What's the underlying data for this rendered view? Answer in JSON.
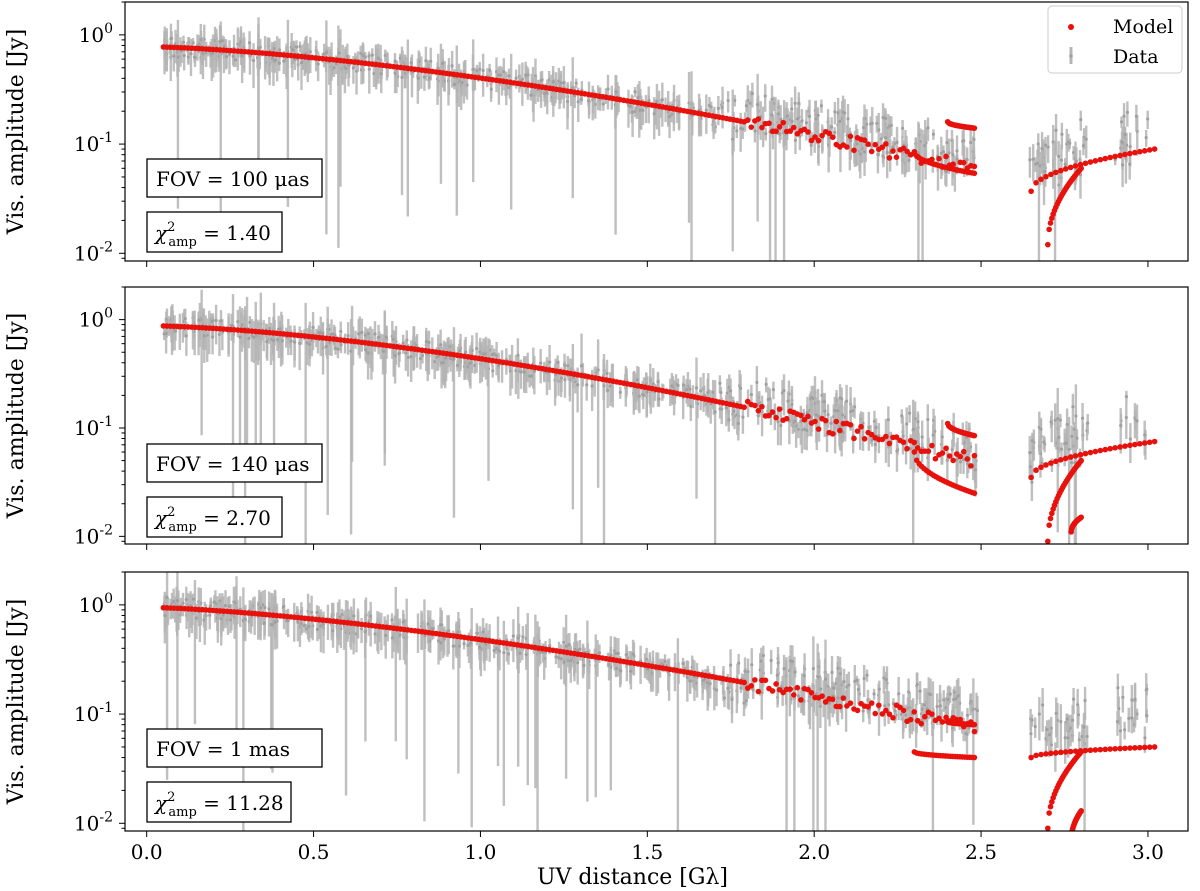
{
  "chart_data": [
    {
      "type": "scatter",
      "panel": 1,
      "ylabel": "Vis. amplitude [Jy]",
      "yscale": "log",
      "ylim": [
        0.0085,
        2.0
      ],
      "xlim": [
        -0.065,
        3.12
      ],
      "yticks": [
        {
          "value": 1,
          "label": "10^0"
        },
        {
          "value": 0.1,
          "label": "10^-1"
        },
        {
          "value": 0.01,
          "label": "10^-2"
        }
      ],
      "fov_label": "FOV = 100 μas",
      "chi2_label": "χ²amp = 1.40",
      "chi2_value": "1.40",
      "legend": [
        "Model",
        "Data"
      ],
      "model": {
        "y0": 0.78,
        "tau": 0.53,
        "p": 1.5,
        "branches": [
          [
            2.4,
            2.48,
            0.16,
            0.14
          ],
          [
            2.3,
            2.48,
            0.085,
            0.054
          ],
          [
            2.65,
            3.02,
            0.037,
            0.09
          ],
          [
            2.7,
            2.8,
            0.012,
            0.06
          ]
        ]
      },
      "series": [
        {
          "name": "Model",
          "color": "#e8110c"
        },
        {
          "name": "Data",
          "color": "#b4b4b4"
        }
      ]
    },
    {
      "type": "scatter",
      "panel": 2,
      "ylabel": "Vis. amplitude [Jy]",
      "yscale": "log",
      "ylim": [
        0.0085,
        2.0
      ],
      "xlim": [
        -0.065,
        3.12
      ],
      "yticks": [
        {
          "value": 1,
          "label": "10^0"
        },
        {
          "value": 0.1,
          "label": "10^-1"
        },
        {
          "value": 0.01,
          "label": "10^-2"
        }
      ],
      "fov_label": "FOV = 140 μas",
      "chi2_label": "χ²amp = 2.70",
      "chi2_value": "2.70",
      "model": {
        "y0": 0.88,
        "tau": 0.5,
        "p": 1.55,
        "branches": [
          [
            2.4,
            2.48,
            0.11,
            0.085
          ],
          [
            2.3,
            2.48,
            0.06,
            0.025
          ],
          [
            2.65,
            3.02,
            0.035,
            0.075
          ],
          [
            2.7,
            2.8,
            0.009,
            0.05
          ],
          [
            2.77,
            2.8,
            0.011,
            0.015
          ]
        ]
      },
      "series": [
        {
          "name": "Model",
          "color": "#e8110c"
        },
        {
          "name": "Data",
          "color": "#b4b4b4"
        }
      ]
    },
    {
      "type": "scatter",
      "panel": 3,
      "xlabel": "UV distance [Gλ]",
      "ylabel": "Vis. amplitude [Jy]",
      "yscale": "log",
      "ylim": [
        0.0085,
        2.0
      ],
      "xlim": [
        -0.065,
        3.12
      ],
      "xticks": [
        0.0,
        0.5,
        1.0,
        1.5,
        2.0,
        2.5,
        3.0
      ],
      "xtick_labels": [
        "0.0",
        "0.5",
        "1.0",
        "1.5",
        "2.0",
        "2.5",
        "3.0"
      ],
      "yticks": [
        {
          "value": 1,
          "label": "10^0"
        },
        {
          "value": 0.1,
          "label": "10^-1"
        },
        {
          "value": 0.01,
          "label": "10^-2"
        }
      ],
      "fov_label": "FOV = 1 mas",
      "chi2_label": "χ²amp = 11.28",
      "chi2_value": "11.28",
      "model": {
        "y0": 0.95,
        "tau": 0.53,
        "p": 1.45,
        "branches": [
          [
            2.4,
            2.48,
            0.085,
            0.08
          ],
          [
            2.3,
            2.48,
            0.045,
            0.04
          ],
          [
            2.65,
            3.02,
            0.04,
            0.05
          ],
          [
            2.7,
            2.8,
            0.009,
            0.045
          ],
          [
            2.77,
            2.8,
            0.007,
            0.013
          ]
        ]
      },
      "series": [
        {
          "name": "Model",
          "color": "#e8110c"
        },
        {
          "name": "Data",
          "color": "#b4b4b4"
        }
      ]
    }
  ],
  "legend": {
    "model_label": "Model",
    "data_label": "Data"
  },
  "axes": {
    "xlabel": "UV distance [Gλ]",
    "ylabel": "Vis. amplitude [Jy]"
  }
}
